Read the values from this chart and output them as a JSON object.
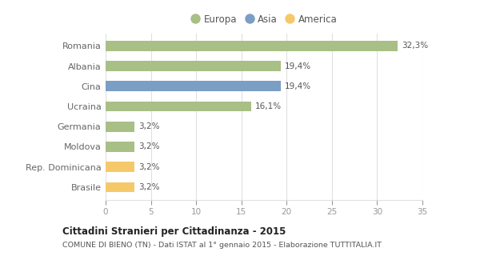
{
  "categories": [
    "Brasile",
    "Rep. Dominicana",
    "Moldova",
    "Germania",
    "Ucraina",
    "Cina",
    "Albania",
    "Romania"
  ],
  "values": [
    3.2,
    3.2,
    3.2,
    3.2,
    16.1,
    19.4,
    19.4,
    32.3
  ],
  "labels": [
    "3,2%",
    "3,2%",
    "3,2%",
    "3,2%",
    "16,1%",
    "19,4%",
    "19,4%",
    "32,3%"
  ],
  "colors": [
    "#f5c96a",
    "#f5c96a",
    "#a8bf85",
    "#a8bf85",
    "#a8bf85",
    "#7b9ec4",
    "#a8bf85",
    "#a8bf85"
  ],
  "legend": [
    {
      "label": "Europa",
      "color": "#a8bf85"
    },
    {
      "label": "Asia",
      "color": "#7b9ec4"
    },
    {
      "label": "America",
      "color": "#f5c96a"
    }
  ],
  "xlim": [
    0,
    35
  ],
  "xticks": [
    0,
    5,
    10,
    15,
    20,
    25,
    30,
    35
  ],
  "title": "Cittadini Stranieri per Cittadinanza - 2015",
  "subtitle": "COMUNE DI BIENO (TN) - Dati ISTAT al 1° gennaio 2015 - Elaborazione TUTTITALIA.IT",
  "background_color": "#ffffff",
  "grid_color": "#e0e0e0"
}
